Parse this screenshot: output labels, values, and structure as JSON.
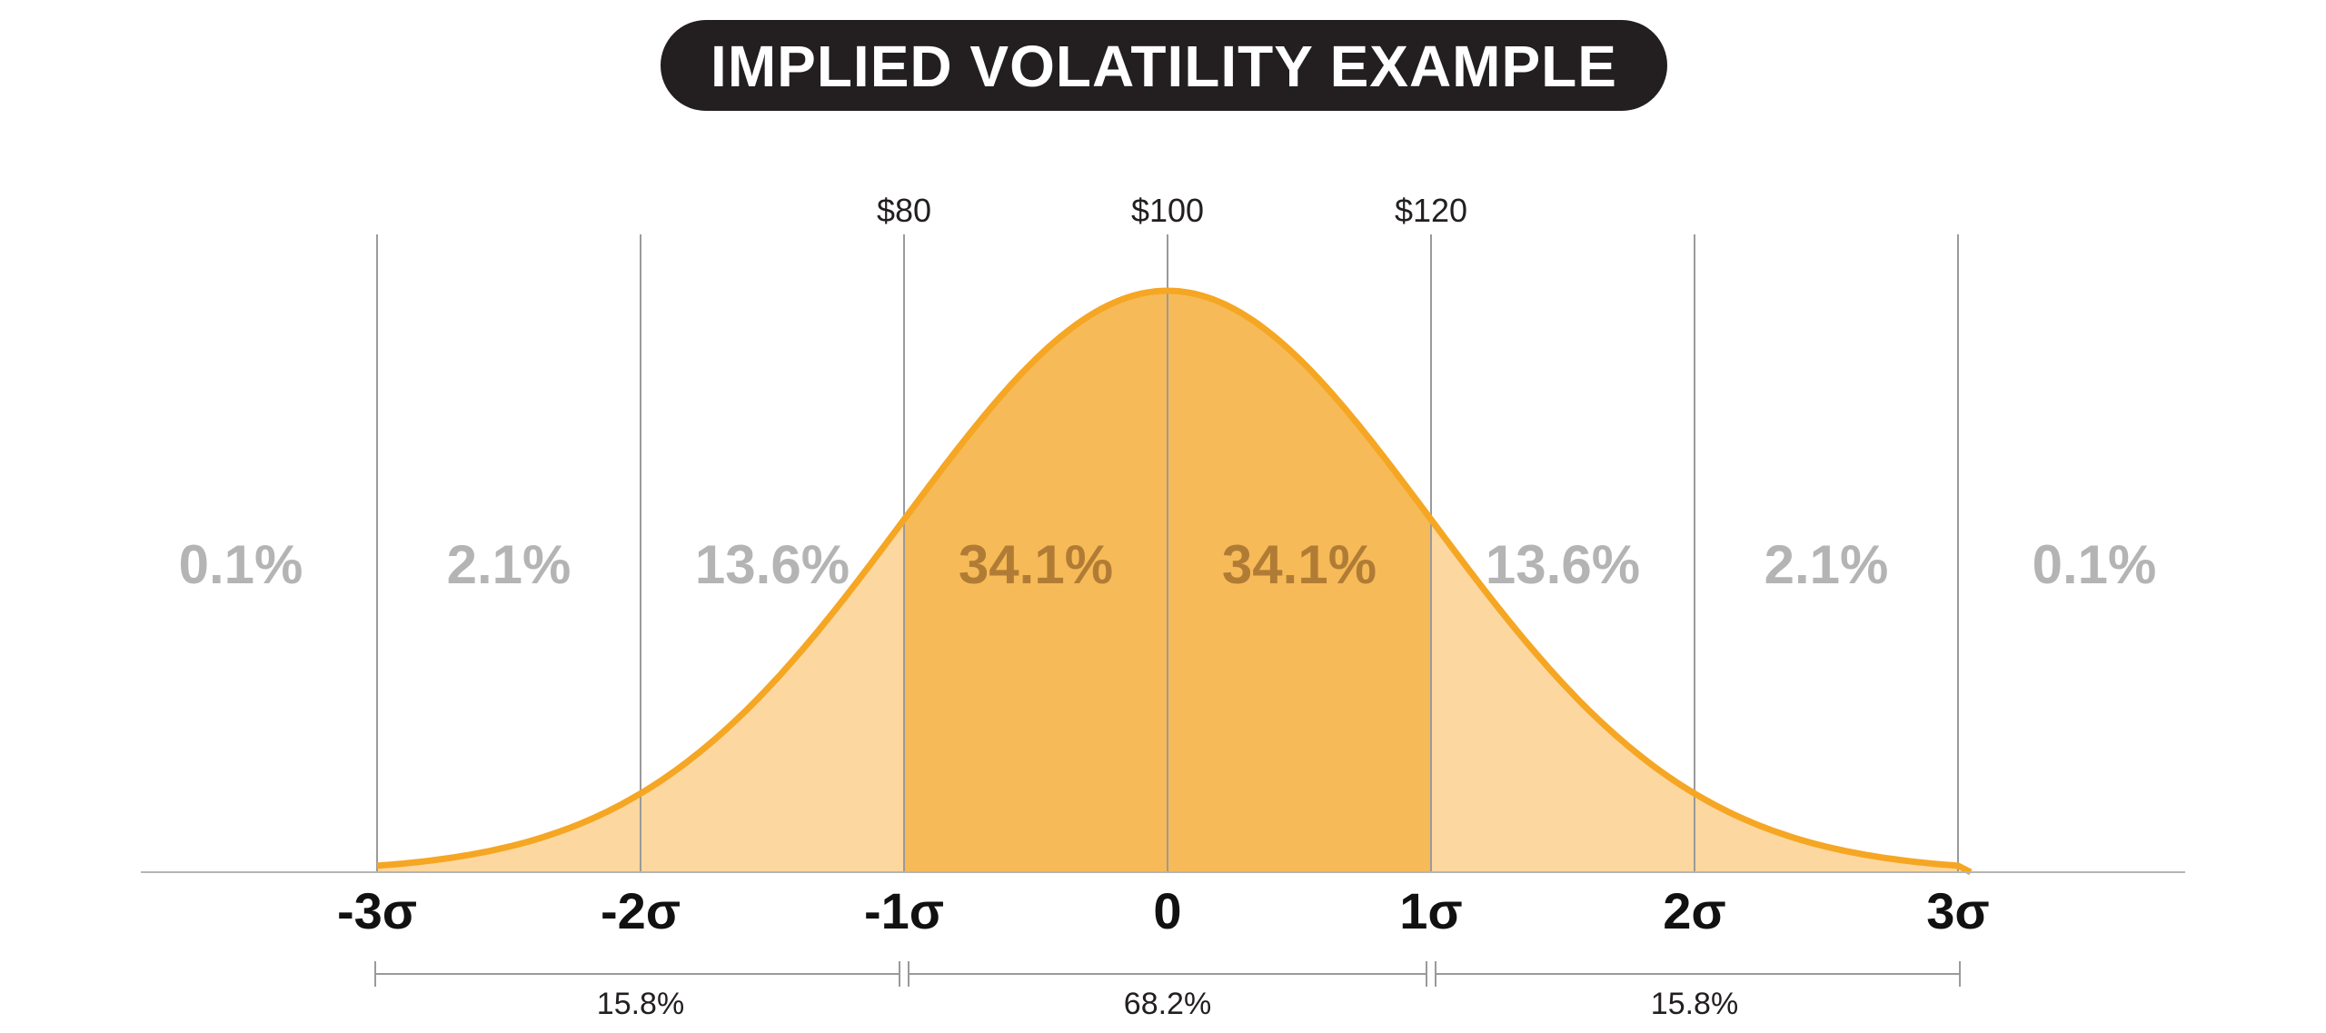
{
  "title": "IMPLIED VOLATILITY EXAMPLE",
  "colors": {
    "title_bg": "#231f20",
    "curve": "#f5a623",
    "fill_inner": "#f7ba58",
    "fill_outer": "#fcd79f",
    "label_grey": "#b4b4b4",
    "label_inner": "#b07c35"
  },
  "chart_data": {
    "type": "area",
    "distribution": "normal",
    "mean": 0,
    "sd": 1,
    "xlim": [
      -3,
      3
    ],
    "ticks": [
      {
        "x": -3,
        "label": "-3σ"
      },
      {
        "x": -2,
        "label": "-2σ"
      },
      {
        "x": -1,
        "label": "-1σ"
      },
      {
        "x": 0,
        "label": "0"
      },
      {
        "x": 1,
        "label": "1σ"
      },
      {
        "x": 2,
        "label": "2σ"
      },
      {
        "x": 3,
        "label": "3σ"
      }
    ],
    "price_labels": [
      {
        "x": -1,
        "label": "$80"
      },
      {
        "x": 0,
        "label": "$100"
      },
      {
        "x": 1,
        "label": "$120"
      }
    ],
    "regions": [
      {
        "from": null,
        "to": -3,
        "percent": "0.1%"
      },
      {
        "from": -3,
        "to": -2,
        "percent": "2.1%"
      },
      {
        "from": -2,
        "to": -1,
        "percent": "13.6%"
      },
      {
        "from": -1,
        "to": 0,
        "percent": "34.1%"
      },
      {
        "from": 0,
        "to": 1,
        "percent": "34.1%"
      },
      {
        "from": 1,
        "to": 2,
        "percent": "13.6%"
      },
      {
        "from": 2,
        "to": 3,
        "percent": "2.1%"
      },
      {
        "from": 3,
        "to": null,
        "percent": "0.1%"
      }
    ],
    "brackets": [
      {
        "from": -3,
        "to": -1,
        "label": "15.8%"
      },
      {
        "from": -1,
        "to": 1,
        "label": "68.2%"
      },
      {
        "from": 1,
        "to": 3,
        "label": "15.8%"
      }
    ]
  }
}
